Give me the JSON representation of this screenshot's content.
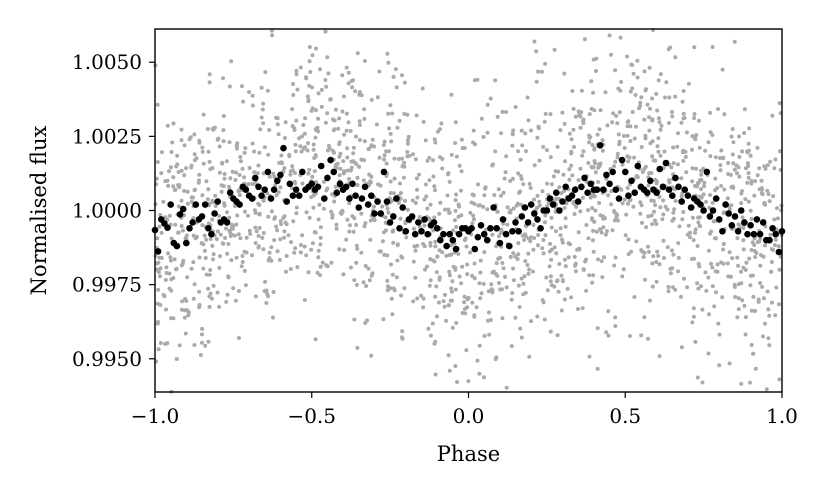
{
  "chart_data": {
    "type": "scatter",
    "title": "",
    "xlabel": "Phase",
    "ylabel": "Normalised flux",
    "xlim": [
      -1.0,
      1.0
    ],
    "ylim": [
      0.99388,
      1.00612
    ],
    "x_ticks": [
      -1.0,
      -0.5,
      0.0,
      0.5,
      1.0
    ],
    "x_tick_labels": [
      "−1.0",
      "−0.5",
      "0.0",
      "0.5",
      "1.0"
    ],
    "y_ticks": [
      0.995,
      0.9975,
      1.0,
      1.0025,
      1.005
    ],
    "y_tick_labels": [
      "0.9950",
      "0.9975",
      "1.0000",
      "1.0025",
      "1.0050"
    ],
    "grid": false,
    "legend": "none",
    "colors": {
      "raw": "#aaaaaa",
      "binned": "#000000"
    },
    "series": [
      {
        "kind": "raw",
        "description_of_generation": "dense cloud, ~2000 points spread approx ±0.0035",
        "approx_count": 2000,
        "model": {
          "mean": 1.0,
          "amplitude": 0.0011,
          "period_in_phase": 1.0,
          "peak_phase": [
            -0.5,
            0.5
          ],
          "scatter_sd": 0.0022
        }
      },
      {
        "kind": "binned",
        "points": [
          [
            -1.0,
            0.99934
          ],
          [
            -0.99,
            0.99862
          ],
          [
            -0.98,
            0.9997
          ],
          [
            -0.97,
            0.99956
          ],
          [
            -0.96,
            0.99942
          ],
          [
            -0.95,
            1.0002
          ],
          [
            -0.94,
            0.9989
          ],
          [
            -0.93,
            0.9988
          ],
          [
            -0.92,
            0.99987
          ],
          [
            -0.91,
            1.00005
          ],
          [
            -0.9,
            0.9989
          ],
          [
            -0.89,
            0.9994
          ],
          [
            -0.88,
            0.9996
          ],
          [
            -0.87,
            1.0002
          ],
          [
            -0.86,
            0.9997
          ],
          [
            -0.85,
            0.9998
          ],
          [
            -0.84,
            1.0002
          ],
          [
            -0.83,
            0.9994
          ],
          [
            -0.82,
            0.9992
          ],
          [
            -0.81,
            0.9999
          ],
          [
            -0.8,
            1.0003
          ],
          [
            -0.79,
            0.9996
          ],
          [
            -0.78,
            0.9997
          ],
          [
            -0.77,
            0.9996
          ],
          [
            -0.76,
            1.0006
          ],
          [
            -0.75,
            1.0004
          ],
          [
            -0.74,
            1.0003
          ],
          [
            -0.73,
            1.0002
          ],
          [
            -0.72,
            1.0008
          ],
          [
            -0.71,
            1.0007
          ],
          [
            -0.7,
            1.0005
          ],
          [
            -0.69,
            1.0004
          ],
          [
            -0.68,
            1.0011
          ],
          [
            -0.67,
            1.0008
          ],
          [
            -0.66,
            1.0005
          ],
          [
            -0.65,
            1.0007
          ],
          [
            -0.64,
            1.0013
          ],
          [
            -0.63,
            1.0004
          ],
          [
            -0.62,
            1.0007
          ],
          [
            -0.61,
            1.001
          ],
          [
            -0.6,
            1.0012
          ],
          [
            -0.59,
            1.0021
          ],
          [
            -0.58,
            1.0003
          ],
          [
            -0.57,
            1.0009
          ],
          [
            -0.56,
            1.0005
          ],
          [
            -0.55,
            1.0007
          ],
          [
            -0.54,
            1.0005
          ],
          [
            -0.53,
            1.0013
          ],
          [
            -0.52,
            1.0007
          ],
          [
            -0.51,
            1.0008
          ],
          [
            -0.5,
            1.0009
          ],
          [
            -0.49,
            1.0007
          ],
          [
            -0.48,
            1.0008
          ],
          [
            -0.47,
            1.0015
          ],
          [
            -0.46,
            1.0004
          ],
          [
            -0.45,
            1.0011
          ],
          [
            -0.44,
            1.0017
          ],
          [
            -0.43,
            1.0013
          ],
          [
            -0.42,
            1.0006
          ],
          [
            -0.41,
            1.0009
          ],
          [
            -0.4,
            1.0007
          ],
          [
            -0.39,
            1.0008
          ],
          [
            -0.38,
            1.0004
          ],
          [
            -0.37,
            1.0009
          ],
          [
            -0.36,
            1.0005
          ],
          [
            -0.35,
            1.0001
          ],
          [
            -0.34,
            1.0004
          ],
          [
            -0.33,
            1.0008
          ],
          [
            -0.32,
            1.0002
          ],
          [
            -0.31,
            1.0005
          ],
          [
            -0.3,
            0.9999
          ],
          [
            -0.29,
            1.0003
          ],
          [
            -0.28,
            0.9999
          ],
          [
            -0.27,
            1.0013
          ],
          [
            -0.26,
            1.0003
          ],
          [
            -0.25,
            0.9996
          ],
          [
            -0.24,
            0.9998
          ],
          [
            -0.23,
            1.0004
          ],
          [
            -0.22,
            0.9994
          ],
          [
            -0.21,
            1.0001
          ],
          [
            -0.2,
            0.9993
          ],
          [
            -0.19,
            0.9997
          ],
          [
            -0.18,
            0.9998
          ],
          [
            -0.17,
            0.9992
          ],
          [
            -0.16,
            0.9996
          ],
          [
            -0.15,
            0.9993
          ],
          [
            -0.14,
            0.9997
          ],
          [
            -0.13,
            0.9992
          ],
          [
            -0.12,
            0.9995
          ],
          [
            -0.11,
            0.9996
          ],
          [
            -0.1,
            0.9994
          ],
          [
            -0.09,
            0.999
          ],
          [
            -0.08,
            0.9992
          ],
          [
            -0.07,
            0.9988
          ],
          [
            -0.06,
            0.9992
          ],
          [
            -0.05,
            0.999
          ],
          [
            -0.04,
            0.9987
          ],
          [
            -0.03,
            0.9992
          ],
          [
            -0.02,
            0.9994
          ],
          [
            -0.01,
            0.9994
          ],
          [
            0.0,
            0.9993
          ],
          [
            0.01,
            0.9994
          ],
          [
            0.02,
            0.9987
          ],
          [
            0.03,
            0.9991
          ],
          [
            0.04,
            0.9995
          ],
          [
            0.05,
            0.9992
          ],
          [
            0.06,
            0.999
          ],
          [
            0.07,
            0.9994
          ],
          [
            0.08,
            1.0001
          ],
          [
            0.09,
            0.9994
          ],
          [
            0.1,
            0.9989
          ],
          [
            0.11,
            0.9997
          ],
          [
            0.12,
            0.9992
          ],
          [
            0.13,
            0.9988
          ],
          [
            0.14,
            0.9993
          ],
          [
            0.15,
            0.9996
          ],
          [
            0.16,
            0.9993
          ],
          [
            0.17,
            0.9998
          ],
          [
            0.18,
            1.0001
          ],
          [
            0.19,
            0.9996
          ],
          [
            0.2,
            1.0002
          ],
          [
            0.21,
            0.9999
          ],
          [
            0.22,
            0.9997
          ],
          [
            0.23,
            0.9994
          ],
          [
            0.24,
            1.0
          ],
          [
            0.25,
            1.0
          ],
          [
            0.26,
            1.0004
          ],
          [
            0.27,
            1.0002
          ],
          [
            0.28,
            1.0006
          ],
          [
            0.29,
            1.0
          ],
          [
            0.3,
            1.0003
          ],
          [
            0.31,
            1.0008
          ],
          [
            0.32,
            1.0004
          ],
          [
            0.33,
            1.0005
          ],
          [
            0.34,
            1.0007
          ],
          [
            0.35,
            1.0003
          ],
          [
            0.36,
            1.0008
          ],
          [
            0.37,
            1.0011
          ],
          [
            0.38,
            1.0006
          ],
          [
            0.39,
            1.0009
          ],
          [
            0.4,
            1.0007
          ],
          [
            0.41,
            1.0007
          ],
          [
            0.42,
            1.0022
          ],
          [
            0.43,
            1.0007
          ],
          [
            0.44,
            1.0012
          ],
          [
            0.45,
            1.0009
          ],
          [
            0.46,
            1.0013
          ],
          [
            0.47,
            1.0007
          ],
          [
            0.48,
            1.0004
          ],
          [
            0.49,
            1.0017
          ],
          [
            0.5,
            1.0013
          ],
          [
            0.51,
            1.0005
          ],
          [
            0.52,
            1.001
          ],
          [
            0.53,
            1.0006
          ],
          [
            0.54,
            1.0015
          ],
          [
            0.55,
            1.0008
          ],
          [
            0.56,
            1.0007
          ],
          [
            0.57,
            1.0006
          ],
          [
            0.58,
            1.001
          ],
          [
            0.59,
            1.0007
          ],
          [
            0.6,
            1.0006
          ],
          [
            0.61,
            1.0014
          ],
          [
            0.62,
            1.0008
          ],
          [
            0.63,
            1.0016
          ],
          [
            0.64,
            1.0007
          ],
          [
            0.65,
            1.0005
          ],
          [
            0.66,
            1.0011
          ],
          [
            0.67,
            1.0008
          ],
          [
            0.68,
            1.0003
          ],
          [
            0.69,
            1.0007
          ],
          [
            0.7,
            1.0005
          ],
          [
            0.71,
            1.0001
          ],
          [
            0.72,
            1.0004
          ],
          [
            0.73,
            1.0003
          ],
          [
            0.74,
            1.0002
          ],
          [
            0.75,
            1.0
          ],
          [
            0.76,
            1.0013
          ],
          [
            0.77,
            0.9998
          ],
          [
            0.78,
            1.0
          ],
          [
            0.79,
            1.0004
          ],
          [
            0.8,
            0.9997
          ],
          [
            0.81,
            0.9993
          ],
          [
            0.82,
            1.0002
          ],
          [
            0.83,
            0.9999
          ],
          [
            0.84,
            0.9995
          ],
          [
            0.85,
            0.9998
          ],
          [
            0.86,
            0.9993
          ],
          [
            0.87,
            1.0
          ],
          [
            0.88,
            0.9996
          ],
          [
            0.89,
            0.9992
          ],
          [
            0.9,
            0.9995
          ],
          [
            0.91,
            0.9992
          ],
          [
            0.92,
            0.9997
          ],
          [
            0.93,
            0.9992
          ],
          [
            0.94,
            0.9996
          ],
          [
            0.95,
            0.999
          ],
          [
            0.96,
            0.999
          ],
          [
            0.97,
            0.9994
          ],
          [
            0.98,
            0.9992
          ],
          [
            0.99,
            0.9986
          ],
          [
            1.0,
            0.9993
          ]
        ]
      }
    ]
  }
}
